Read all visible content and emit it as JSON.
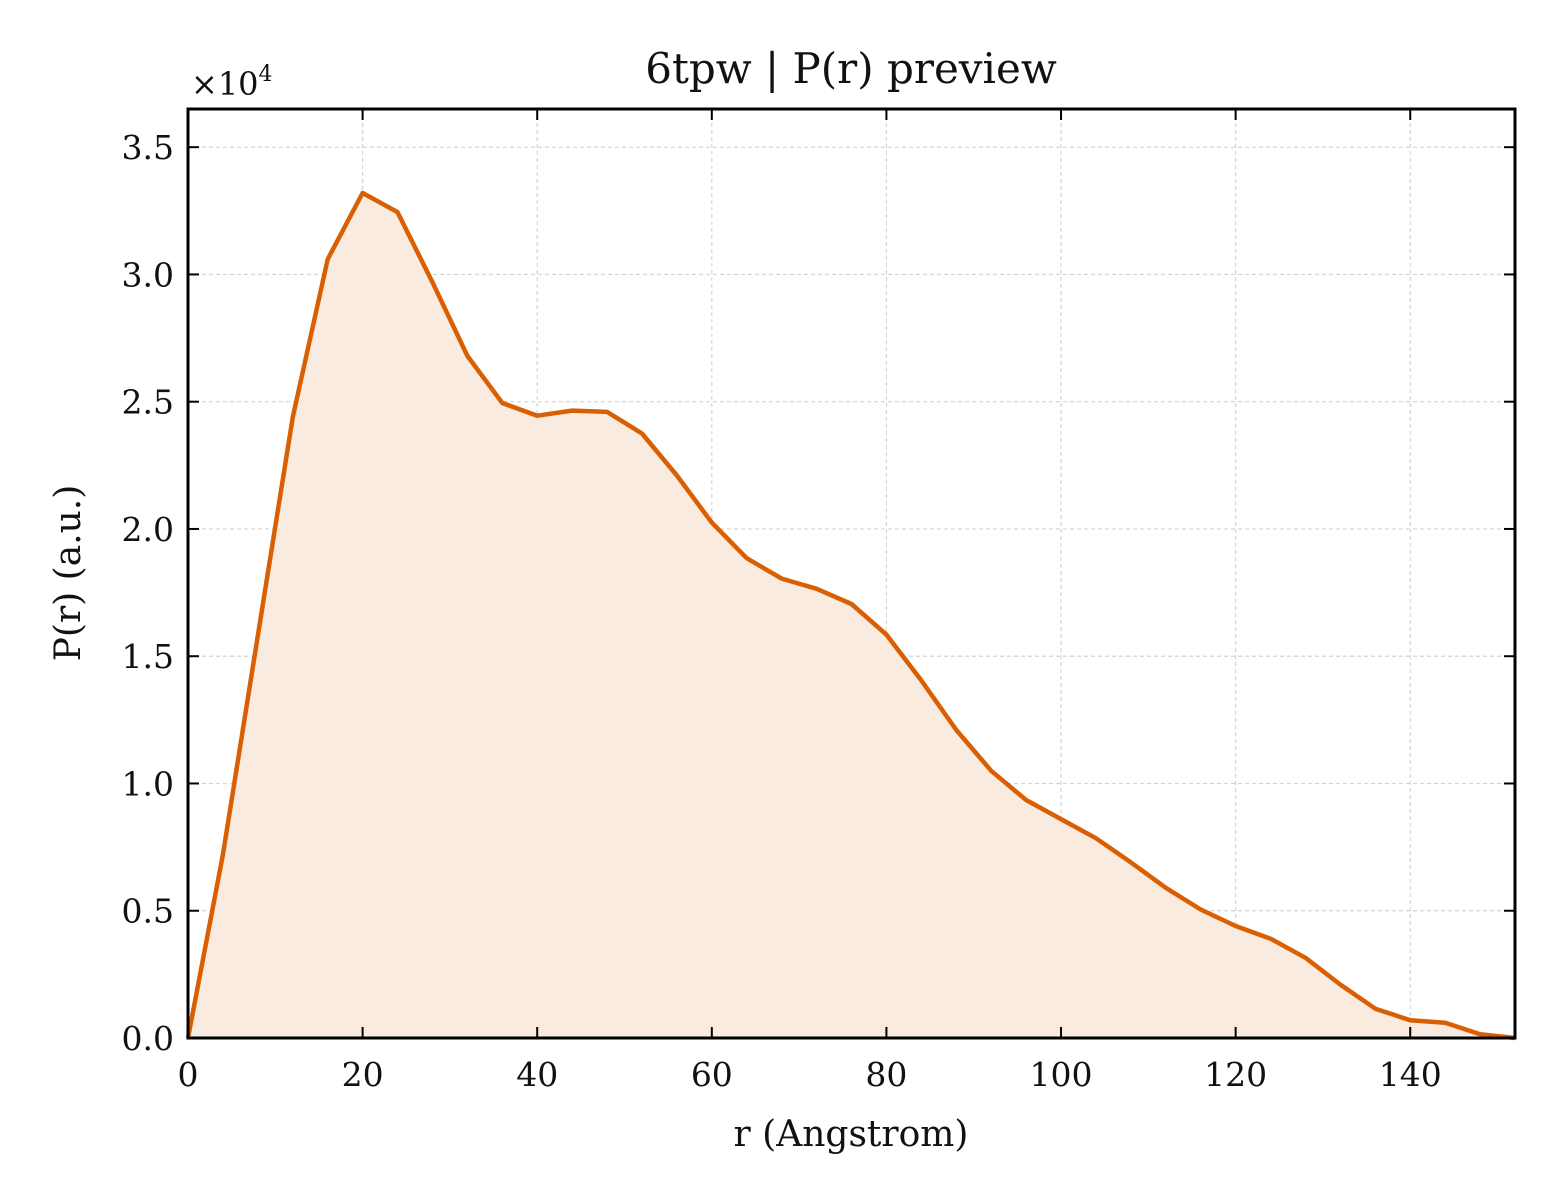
{
  "chart_data": {
    "type": "area",
    "title": "6tpw | P(r) preview",
    "xlabel": "r (Angstrom)",
    "ylabel": "P(r) (a.u.)",
    "y_offset_label": "×10",
    "y_offset_exponent": "4",
    "y_multiplier": 10000,
    "xlim": [
      0,
      152
    ],
    "ylim": [
      0,
      3.65
    ],
    "x_ticks": [
      0,
      20,
      40,
      60,
      80,
      100,
      120,
      140
    ],
    "x_tick_labels": [
      "0",
      "20",
      "40",
      "60",
      "80",
      "100",
      "120",
      "140"
    ],
    "y_ticks": [
      0,
      0.5,
      1.0,
      1.5,
      2.0,
      2.5,
      3.0,
      3.5
    ],
    "y_tick_labels": [
      "0.0",
      "0.5",
      "1.0",
      "1.5",
      "2.0",
      "2.5",
      "3.0",
      "3.5"
    ],
    "grid": true,
    "series": [
      {
        "color": "#d95f02",
        "fill_color": "#f9ebe0",
        "x": [
          0,
          4,
          8,
          12,
          16,
          20,
          24,
          28,
          32,
          36,
          40,
          44,
          48,
          52,
          56,
          60,
          64,
          68,
          72,
          76,
          80,
          84,
          88,
          92,
          96,
          100,
          104,
          108,
          112,
          116,
          120,
          124,
          128,
          132,
          136,
          140,
          144,
          148,
          152
        ],
        "y": [
          0,
          0.72,
          1.58,
          2.44,
          3.06,
          3.32,
          3.245,
          2.97,
          2.68,
          2.495,
          2.445,
          2.465,
          2.46,
          2.375,
          2.21,
          2.025,
          1.885,
          1.805,
          1.765,
          1.705,
          1.585,
          1.405,
          1.21,
          1.05,
          0.935,
          0.86,
          0.785,
          0.69,
          0.59,
          0.505,
          0.44,
          0.39,
          0.315,
          0.21,
          0.115,
          0.07,
          0.06,
          0.015,
          0.0
        ]
      }
    ]
  }
}
